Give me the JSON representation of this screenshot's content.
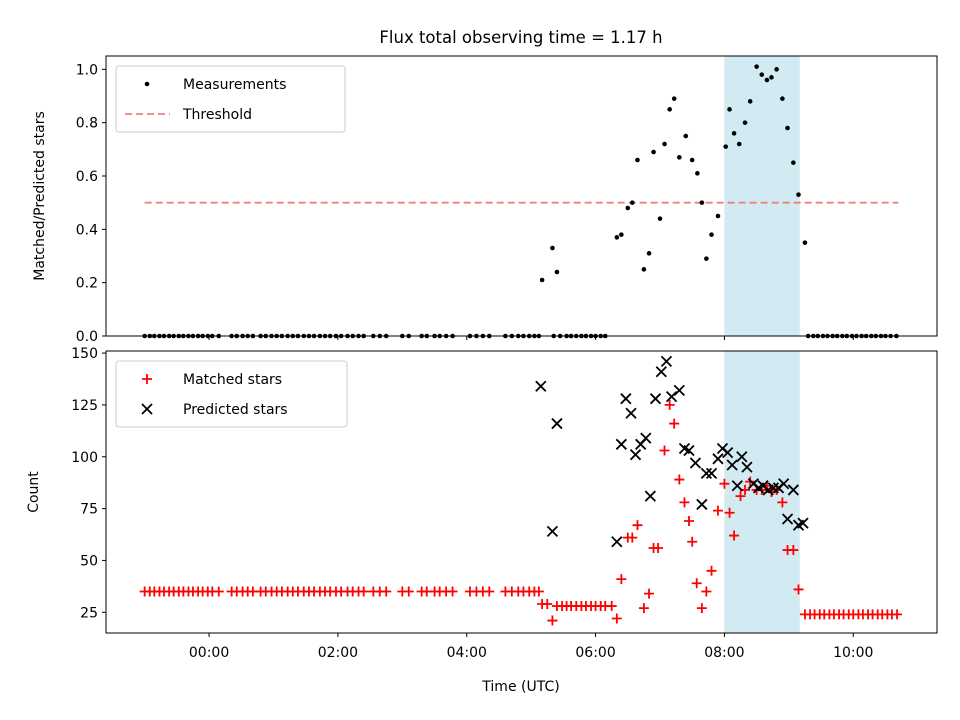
{
  "chart_data": {
    "title": "Flux total observing time = 1.17 h",
    "xlabel": "Time (UTC)",
    "xticks": [
      {
        "hour": 0,
        "label": "00:00"
      },
      {
        "hour": 2,
        "label": "02:00"
      },
      {
        "hour": 4,
        "label": "04:00"
      },
      {
        "hour": 6,
        "label": "06:00"
      },
      {
        "hour": 8,
        "label": "08:00"
      },
      {
        "hour": 10,
        "label": "10:00"
      }
    ],
    "xlim": [
      -1.6,
      11.3
    ],
    "highlight_span": {
      "from": 8.0,
      "to": 9.17,
      "color": "#add8e6"
    },
    "panels": [
      {
        "type": "scatter",
        "ylabel": "Matched/Predicted stars",
        "ylim": [
          0,
          1.05
        ],
        "yticks": [
          "0.0",
          "0.2",
          "0.4",
          "0.6",
          "0.8",
          "1.0"
        ],
        "ytick_values": [
          0,
          0.2,
          0.4,
          0.6,
          0.8,
          1.0
        ],
        "legend": [
          {
            "label": "Measurements",
            "marker": "dot"
          },
          {
            "label": "Threshold",
            "marker": "dashed-line"
          }
        ],
        "threshold": {
          "y": 0.5,
          "x_from": -1.0,
          "x_to": 10.7,
          "color": "#f08080"
        },
        "measurements": [
          [
            -1.0,
            0
          ],
          [
            -0.92,
            0
          ],
          [
            -0.85,
            0
          ],
          [
            -0.77,
            0
          ],
          [
            -0.7,
            0
          ],
          [
            -0.62,
            0
          ],
          [
            -0.55,
            0
          ],
          [
            -0.47,
            0
          ],
          [
            -0.4,
            0
          ],
          [
            -0.32,
            0
          ],
          [
            -0.25,
            0
          ],
          [
            -0.17,
            0
          ],
          [
            -0.1,
            0
          ],
          [
            -0.02,
            0
          ],
          [
            0.05,
            0
          ],
          [
            0.15,
            0
          ],
          [
            0.35,
            0
          ],
          [
            0.43,
            0
          ],
          [
            0.52,
            0
          ],
          [
            0.6,
            0
          ],
          [
            0.68,
            0
          ],
          [
            0.8,
            0
          ],
          [
            0.88,
            0
          ],
          [
            0.97,
            0
          ],
          [
            1.05,
            0
          ],
          [
            1.13,
            0
          ],
          [
            1.22,
            0
          ],
          [
            1.3,
            0
          ],
          [
            1.38,
            0
          ],
          [
            1.47,
            0
          ],
          [
            1.55,
            0
          ],
          [
            1.63,
            0
          ],
          [
            1.72,
            0
          ],
          [
            1.8,
            0
          ],
          [
            1.88,
            0
          ],
          [
            1.97,
            0
          ],
          [
            2.05,
            0
          ],
          [
            2.15,
            0
          ],
          [
            2.23,
            0
          ],
          [
            2.32,
            0
          ],
          [
            2.4,
            0
          ],
          [
            2.55,
            0
          ],
          [
            2.65,
            0
          ],
          [
            2.75,
            0
          ],
          [
            3.0,
            0
          ],
          [
            3.1,
            0
          ],
          [
            3.3,
            0
          ],
          [
            3.38,
            0
          ],
          [
            3.5,
            0
          ],
          [
            3.58,
            0
          ],
          [
            3.68,
            0
          ],
          [
            3.78,
            0
          ],
          [
            4.05,
            0
          ],
          [
            4.15,
            0
          ],
          [
            4.25,
            0
          ],
          [
            4.35,
            0
          ],
          [
            4.6,
            0
          ],
          [
            4.7,
            0
          ],
          [
            4.8,
            0
          ],
          [
            4.88,
            0
          ],
          [
            4.97,
            0
          ],
          [
            5.05,
            0
          ],
          [
            5.12,
            0
          ],
          [
            5.35,
            0
          ],
          [
            5.45,
            0
          ],
          [
            5.55,
            0
          ],
          [
            5.62,
            0
          ],
          [
            5.7,
            0
          ],
          [
            5.78,
            0
          ],
          [
            5.85,
            0
          ],
          [
            5.93,
            0
          ],
          [
            6.0,
            0
          ],
          [
            6.08,
            0
          ],
          [
            6.15,
            0
          ],
          [
            9.3,
            0
          ],
          [
            9.38,
            0
          ],
          [
            9.45,
            0
          ],
          [
            9.53,
            0
          ],
          [
            9.6,
            0
          ],
          [
            9.68,
            0
          ],
          [
            9.75,
            0
          ],
          [
            9.83,
            0
          ],
          [
            9.9,
            0
          ],
          [
            9.98,
            0
          ],
          [
            10.05,
            0
          ],
          [
            10.13,
            0
          ],
          [
            10.2,
            0
          ],
          [
            10.28,
            0
          ],
          [
            10.35,
            0
          ],
          [
            10.43,
            0
          ],
          [
            10.5,
            0
          ],
          [
            10.58,
            0
          ],
          [
            10.67,
            0
          ],
          [
            5.17,
            0.21
          ],
          [
            5.33,
            0.33
          ],
          [
            5.4,
            0.24
          ],
          [
            6.33,
            0.37
          ],
          [
            6.4,
            0.38
          ],
          [
            6.5,
            0.48
          ],
          [
            6.57,
            0.5
          ],
          [
            6.65,
            0.66
          ],
          [
            6.75,
            0.25
          ],
          [
            6.83,
            0.31
          ],
          [
            6.9,
            0.69
          ],
          [
            7.0,
            0.44
          ],
          [
            7.07,
            0.72
          ],
          [
            7.15,
            0.85
          ],
          [
            7.22,
            0.89
          ],
          [
            7.3,
            0.67
          ],
          [
            7.4,
            0.75
          ],
          [
            7.5,
            0.66
          ],
          [
            7.58,
            0.61
          ],
          [
            7.65,
            0.5
          ],
          [
            7.72,
            0.29
          ],
          [
            7.8,
            0.38
          ],
          [
            7.9,
            0.45
          ],
          [
            8.02,
            0.71
          ],
          [
            8.08,
            0.85
          ],
          [
            8.15,
            0.76
          ],
          [
            8.23,
            0.72
          ],
          [
            8.32,
            0.8
          ],
          [
            8.4,
            0.88
          ],
          [
            8.5,
            1.01
          ],
          [
            8.58,
            0.98
          ],
          [
            8.66,
            0.96
          ],
          [
            8.73,
            0.97
          ],
          [
            8.81,
            1.0
          ],
          [
            8.9,
            0.89
          ],
          [
            8.98,
            0.78
          ],
          [
            9.07,
            0.65
          ],
          [
            9.15,
            0.53
          ],
          [
            9.25,
            0.35
          ]
        ]
      },
      {
        "type": "scatter",
        "ylabel": "Count",
        "ylim": [
          15,
          151
        ],
        "yticks": [
          "25",
          "50",
          "75",
          "100",
          "125",
          "150"
        ],
        "ytick_values": [
          25,
          50,
          75,
          100,
          125,
          150
        ],
        "legend": [
          {
            "label": "Matched stars",
            "marker": "plus",
            "color": "#ff0000"
          },
          {
            "label": "Predicted stars",
            "marker": "x",
            "color": "#000000"
          }
        ],
        "matched": [
          [
            -1.0,
            35
          ],
          [
            -0.92,
            35
          ],
          [
            -0.85,
            35
          ],
          [
            -0.77,
            35
          ],
          [
            -0.7,
            35
          ],
          [
            -0.62,
            35
          ],
          [
            -0.55,
            35
          ],
          [
            -0.47,
            35
          ],
          [
            -0.4,
            35
          ],
          [
            -0.32,
            35
          ],
          [
            -0.25,
            35
          ],
          [
            -0.17,
            35
          ],
          [
            -0.1,
            35
          ],
          [
            -0.02,
            35
          ],
          [
            0.05,
            35
          ],
          [
            0.15,
            35
          ],
          [
            0.35,
            35
          ],
          [
            0.43,
            35
          ],
          [
            0.52,
            35
          ],
          [
            0.6,
            35
          ],
          [
            0.68,
            35
          ],
          [
            0.8,
            35
          ],
          [
            0.88,
            35
          ],
          [
            0.97,
            35
          ],
          [
            1.05,
            35
          ],
          [
            1.13,
            35
          ],
          [
            1.22,
            35
          ],
          [
            1.3,
            35
          ],
          [
            1.38,
            35
          ],
          [
            1.47,
            35
          ],
          [
            1.55,
            35
          ],
          [
            1.63,
            35
          ],
          [
            1.72,
            35
          ],
          [
            1.8,
            35
          ],
          [
            1.88,
            35
          ],
          [
            1.97,
            35
          ],
          [
            2.05,
            35
          ],
          [
            2.15,
            35
          ],
          [
            2.23,
            35
          ],
          [
            2.32,
            35
          ],
          [
            2.4,
            35
          ],
          [
            2.55,
            35
          ],
          [
            2.65,
            35
          ],
          [
            2.75,
            35
          ],
          [
            3.0,
            35
          ],
          [
            3.1,
            35
          ],
          [
            3.3,
            35
          ],
          [
            3.38,
            35
          ],
          [
            3.5,
            35
          ],
          [
            3.58,
            35
          ],
          [
            3.68,
            35
          ],
          [
            3.78,
            35
          ],
          [
            4.05,
            35
          ],
          [
            4.15,
            35
          ],
          [
            4.25,
            35
          ],
          [
            4.35,
            35
          ],
          [
            4.6,
            35
          ],
          [
            4.7,
            35
          ],
          [
            4.8,
            35
          ],
          [
            4.88,
            35
          ],
          [
            4.97,
            35
          ],
          [
            5.05,
            35
          ],
          [
            5.12,
            35
          ],
          [
            5.17,
            29
          ],
          [
            5.25,
            29
          ],
          [
            5.33,
            21
          ],
          [
            5.4,
            28
          ],
          [
            5.48,
            28
          ],
          [
            5.55,
            28
          ],
          [
            5.62,
            28
          ],
          [
            5.7,
            28
          ],
          [
            5.78,
            28
          ],
          [
            5.85,
            28
          ],
          [
            5.93,
            28
          ],
          [
            6.0,
            28
          ],
          [
            6.08,
            28
          ],
          [
            6.15,
            28
          ],
          [
            6.25,
            28
          ],
          [
            6.33,
            22
          ],
          [
            6.4,
            41
          ],
          [
            6.5,
            61
          ],
          [
            6.57,
            61
          ],
          [
            6.65,
            67
          ],
          [
            6.75,
            27
          ],
          [
            6.83,
            34
          ],
          [
            6.9,
            56
          ],
          [
            6.97,
            56
          ],
          [
            7.07,
            103
          ],
          [
            7.15,
            125
          ],
          [
            7.22,
            116
          ],
          [
            7.3,
            89
          ],
          [
            7.38,
            78
          ],
          [
            7.45,
            69
          ],
          [
            7.5,
            59
          ],
          [
            7.57,
            39
          ],
          [
            7.65,
            27
          ],
          [
            7.72,
            35
          ],
          [
            7.8,
            45
          ],
          [
            7.9,
            74
          ],
          [
            8.0,
            87
          ],
          [
            8.08,
            73
          ],
          [
            8.15,
            62
          ],
          [
            8.25,
            81
          ],
          [
            8.32,
            84
          ],
          [
            8.4,
            88
          ],
          [
            8.5,
            84
          ],
          [
            8.58,
            84
          ],
          [
            8.66,
            86
          ],
          [
            8.73,
            83
          ],
          [
            8.81,
            84
          ],
          [
            8.9,
            78
          ],
          [
            8.98,
            55
          ],
          [
            9.07,
            55
          ],
          [
            9.15,
            36
          ],
          [
            9.25,
            24
          ],
          [
            9.33,
            24
          ],
          [
            9.4,
            24
          ],
          [
            9.48,
            24
          ],
          [
            9.55,
            24
          ],
          [
            9.63,
            24
          ],
          [
            9.7,
            24
          ],
          [
            9.78,
            24
          ],
          [
            9.85,
            24
          ],
          [
            9.93,
            24
          ],
          [
            10.0,
            24
          ],
          [
            10.08,
            24
          ],
          [
            10.15,
            24
          ],
          [
            10.23,
            24
          ],
          [
            10.3,
            24
          ],
          [
            10.38,
            24
          ],
          [
            10.45,
            24
          ],
          [
            10.53,
            24
          ],
          [
            10.6,
            24
          ],
          [
            10.68,
            24
          ]
        ],
        "predicted": [
          [
            5.15,
            134
          ],
          [
            5.33,
            64
          ],
          [
            5.4,
            116
          ],
          [
            6.33,
            59
          ],
          [
            6.4,
            106
          ],
          [
            6.47,
            128
          ],
          [
            6.55,
            121
          ],
          [
            6.62,
            101
          ],
          [
            6.7,
            106
          ],
          [
            6.78,
            109
          ],
          [
            6.85,
            81
          ],
          [
            6.93,
            128
          ],
          [
            7.02,
            141
          ],
          [
            7.1,
            146
          ],
          [
            7.18,
            129
          ],
          [
            7.3,
            132
          ],
          [
            7.38,
            104
          ],
          [
            7.45,
            103
          ],
          [
            7.55,
            97
          ],
          [
            7.65,
            77
          ],
          [
            7.72,
            92
          ],
          [
            7.8,
            92
          ],
          [
            7.9,
            99
          ],
          [
            7.97,
            104
          ],
          [
            8.05,
            102
          ],
          [
            8.12,
            96
          ],
          [
            8.2,
            86
          ],
          [
            8.27,
            100
          ],
          [
            8.35,
            95
          ],
          [
            8.45,
            87
          ],
          [
            8.53,
            85
          ],
          [
            8.6,
            86
          ],
          [
            8.68,
            84
          ],
          [
            8.76,
            85
          ],
          [
            8.84,
            85
          ],
          [
            8.92,
            87
          ],
          [
            8.98,
            70
          ],
          [
            9.07,
            84
          ],
          [
            9.15,
            67
          ],
          [
            9.22,
            68
          ]
        ]
      }
    ]
  }
}
